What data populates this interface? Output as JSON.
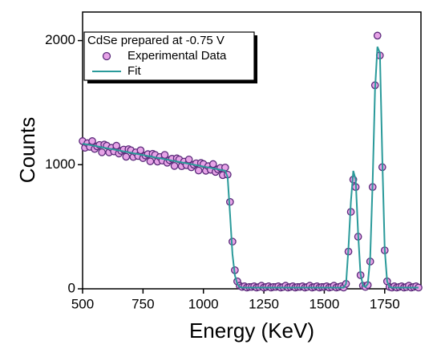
{
  "chart_data": {
    "type": "scatter",
    "xlabel": "Energy (KeV)",
    "ylabel": "Counts",
    "legend_title": "CdSe prepared at -0.75 V",
    "legend": "upper left",
    "xlim": [
      500,
      1900
    ],
    "ylim": [
      0,
      2230
    ],
    "xticks": [
      500,
      750,
      1000,
      1250,
      1500,
      1750
    ],
    "yticks": [
      0,
      1000,
      2000
    ],
    "x": [
      500,
      510,
      520,
      530,
      540,
      550,
      560,
      570,
      580,
      590,
      600,
      610,
      620,
      630,
      640,
      650,
      660,
      670,
      680,
      690,
      700,
      710,
      720,
      730,
      740,
      750,
      760,
      770,
      780,
      790,
      800,
      810,
      820,
      830,
      840,
      850,
      860,
      870,
      880,
      890,
      900,
      910,
      920,
      930,
      940,
      950,
      960,
      970,
      980,
      990,
      1000,
      1010,
      1020,
      1030,
      1040,
      1050,
      1060,
      1070,
      1080,
      1090,
      1100,
      1110,
      1120,
      1130,
      1140,
      1150,
      1160,
      1170,
      1180,
      1190,
      1200,
      1210,
      1220,
      1230,
      1240,
      1250,
      1260,
      1270,
      1280,
      1290,
      1300,
      1310,
      1320,
      1330,
      1340,
      1350,
      1360,
      1370,
      1380,
      1390,
      1400,
      1410,
      1420,
      1430,
      1440,
      1450,
      1460,
      1470,
      1480,
      1490,
      1500,
      1510,
      1520,
      1530,
      1540,
      1550,
      1560,
      1570,
      1580,
      1590,
      1600,
      1610,
      1620,
      1630,
      1640,
      1650,
      1660,
      1670,
      1680,
      1690,
      1700,
      1710,
      1720,
      1730,
      1740,
      1750,
      1760,
      1770,
      1780,
      1790,
      1800,
      1810,
      1820,
      1830,
      1840,
      1850,
      1860,
      1870,
      1880,
      1890
    ],
    "series": [
      {
        "name": "Experimental Data",
        "color": "#e7a3e7",
        "edge": "#5a2a7a",
        "style": "points",
        "values": [
          1190,
          1136,
          1173,
          1144,
          1190,
          1127,
          1148,
          1159,
          1100,
          1162,
          1153,
          1099,
          1136,
          1107,
          1153,
          1090,
          1111,
          1122,
          1064,
          1125,
          1116,
          1062,
          1099,
          1070,
          1116,
          1053,
          1074,
          1085,
          1027,
          1088,
          1079,
          1025,
          1062,
          1033,
          1079,
          1016,
          1037,
          1048,
          990,
          1051,
          1042,
          988,
          1025,
          996,
          1042,
          979,
          1000,
          1011,
          953,
          1014,
          1005,
          951,
          988,
          959,
          1005,
          942,
          963,
          974,
          916,
          977,
          920,
          700,
          380,
          150,
          60,
          25,
          15,
          20,
          10,
          15,
          15,
          20,
          10,
          15,
          25,
          10,
          15,
          20,
          10,
          15,
          15,
          20,
          10,
          15,
          25,
          10,
          15,
          20,
          10,
          15,
          15,
          20,
          10,
          15,
          25,
          10,
          15,
          20,
          10,
          15,
          15,
          20,
          10,
          15,
          25,
          10,
          15,
          20,
          10,
          40,
          300,
          620,
          880,
          820,
          420,
          110,
          25,
          15,
          30,
          220,
          820,
          1640,
          2040,
          1880,
          980,
          310,
          60,
          15,
          10,
          20,
          10,
          15,
          20,
          10,
          15,
          25,
          10,
          15,
          20,
          10
        ]
      },
      {
        "name": "Fit",
        "color": "#2a9a9a",
        "style": "line",
        "values": [
          1170,
          1166,
          1163,
          1159,
          1155,
          1152,
          1148,
          1144,
          1140,
          1137,
          1133,
          1129,
          1126,
          1122,
          1118,
          1115,
          1111,
          1107,
          1104,
          1100,
          1096,
          1092,
          1089,
          1085,
          1081,
          1078,
          1074,
          1070,
          1067,
          1063,
          1059,
          1055,
          1052,
          1048,
          1044,
          1041,
          1037,
          1033,
          1030,
          1026,
          1022,
          1018,
          1015,
          1011,
          1007,
          1004,
          1000,
          996,
          993,
          989,
          985,
          981,
          978,
          974,
          970,
          967,
          963,
          959,
          956,
          952,
          900,
          600,
          280,
          110,
          40,
          15,
          10,
          10,
          10,
          10,
          10,
          10,
          10,
          10,
          10,
          10,
          10,
          10,
          10,
          10,
          10,
          10,
          10,
          10,
          10,
          10,
          10,
          10,
          10,
          10,
          10,
          10,
          10,
          10,
          10,
          10,
          10,
          10,
          10,
          10,
          10,
          10,
          10,
          10,
          10,
          10,
          10,
          10,
          10,
          40,
          330,
          700,
          950,
          880,
          450,
          120,
          25,
          15,
          40,
          250,
          850,
          1600,
          1950,
          1900,
          1050,
          320,
          60,
          15,
          10,
          10,
          10,
          10,
          10,
          10,
          10,
          10,
          10,
          10,
          10,
          10
        ]
      }
    ]
  }
}
